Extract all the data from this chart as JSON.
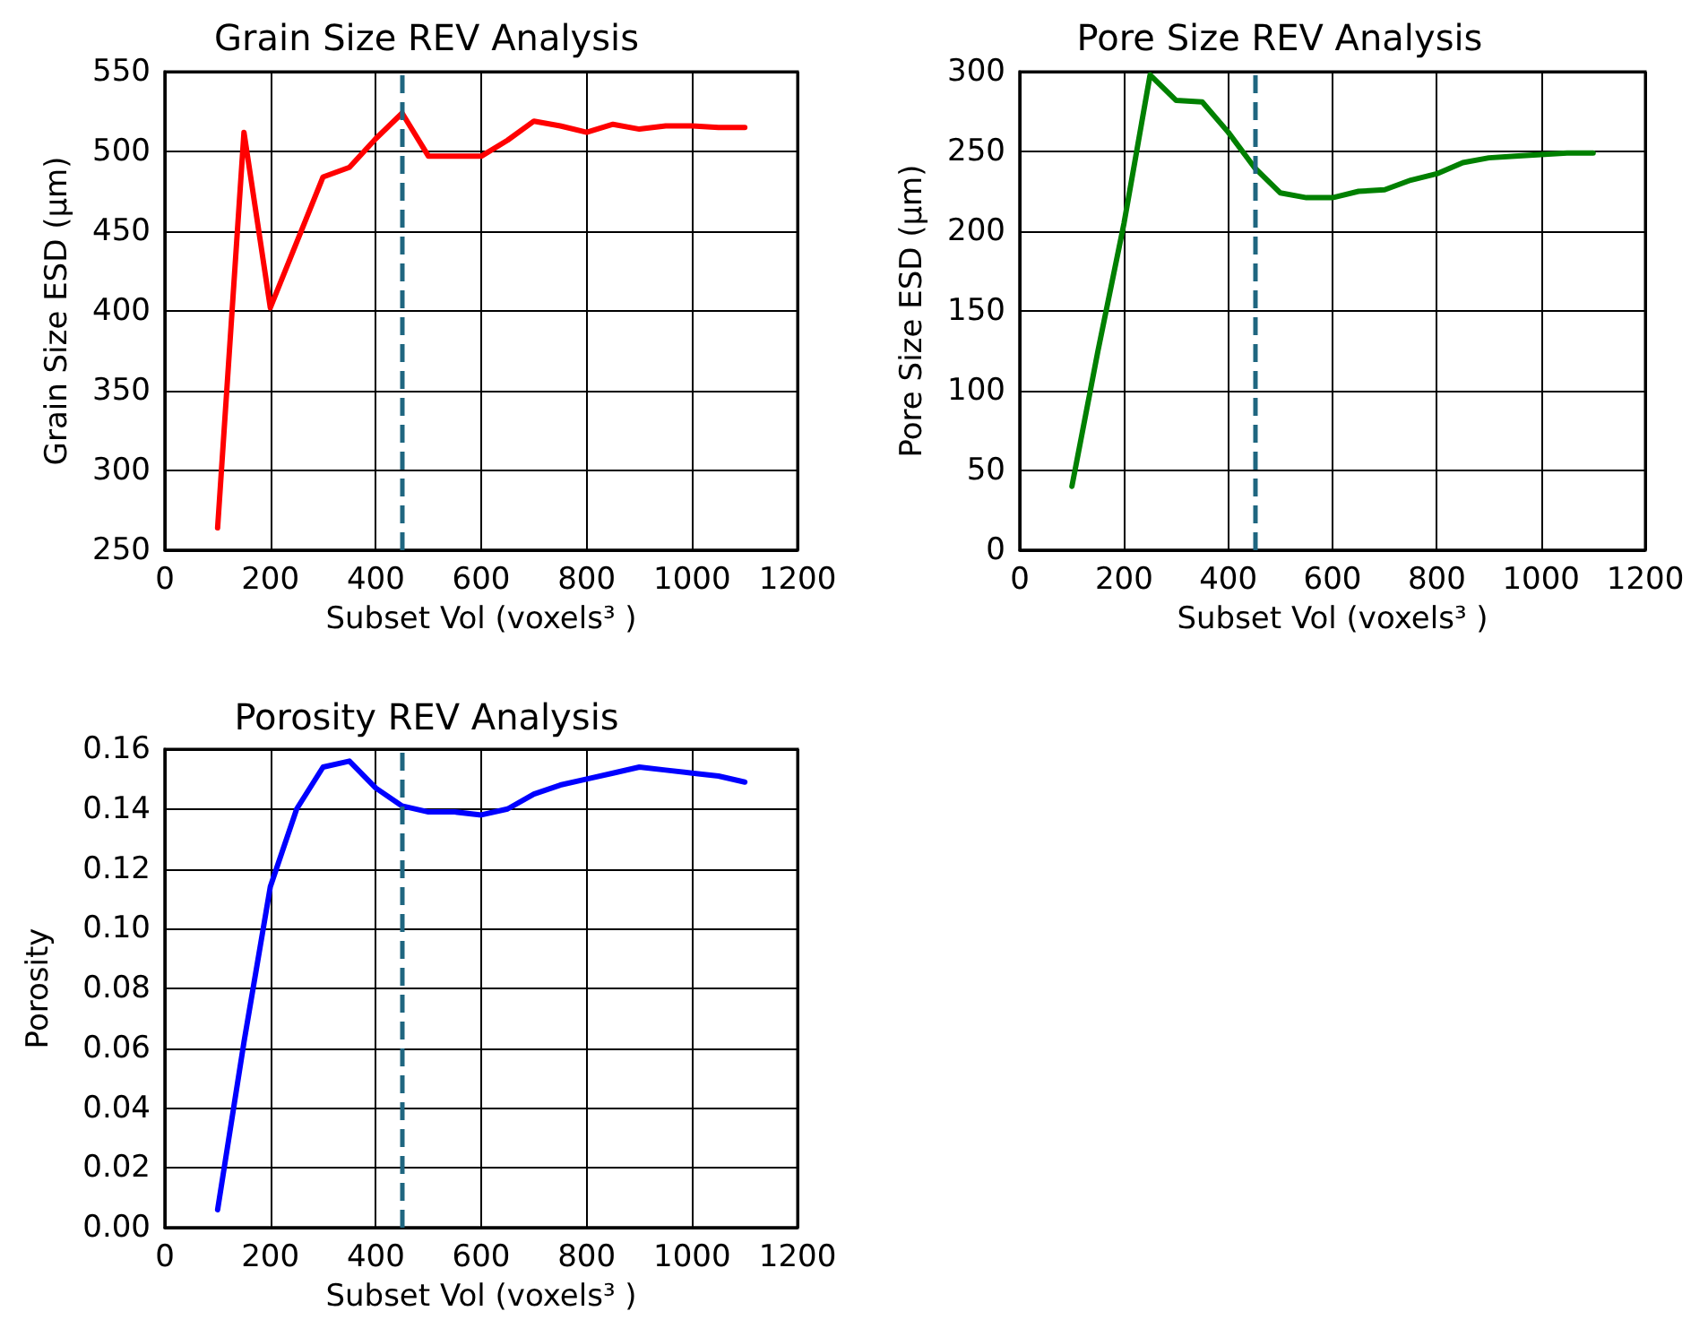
{
  "chart_data": [
    {
      "type": "line",
      "title": "Grain Size REV Analysis",
      "xlabel": "Subset Vol (voxels³ )",
      "ylabel": "Grain Size ESD (μm)",
      "x": [
        100,
        150,
        200,
        250,
        300,
        350,
        400,
        450,
        500,
        550,
        600,
        650,
        700,
        750,
        800,
        850,
        900,
        950,
        1000,
        1050,
        1100
      ],
      "series": [
        {
          "color": "#ff0000",
          "values": [
            264,
            512,
            402,
            443,
            484,
            490,
            508,
            524,
            497,
            497,
            497,
            507,
            519,
            516,
            512,
            517,
            514,
            516,
            516,
            515,
            515
          ]
        }
      ],
      "xlim": [
        0,
        1200
      ],
      "xticks": [
        0,
        200,
        400,
        600,
        800,
        1000,
        1200
      ],
      "ylim": [
        250,
        550
      ],
      "yticks": [
        250,
        300,
        350,
        400,
        450,
        500,
        550
      ],
      "ref_lines": [
        {
          "axis": "x",
          "value": 450,
          "color": "#1f6680",
          "line_style": "dashed"
        }
      ],
      "grid": true,
      "marker": "none",
      "line_style": "solid"
    },
    {
      "type": "line",
      "title": "Pore Size REV Analysis",
      "xlabel": "Subset Vol (voxels³ )",
      "ylabel": "Pore Size ESD (μm)",
      "x": [
        100,
        150,
        200,
        250,
        300,
        350,
        400,
        450,
        500,
        550,
        600,
        650,
        700,
        750,
        800,
        850,
        900,
        950,
        1000,
        1050,
        1100
      ],
      "series": [
        {
          "color": "#008000",
          "values": [
            40,
            125,
            205,
            298,
            282,
            281,
            262,
            240,
            224,
            221,
            221,
            225,
            226,
            232,
            236,
            243,
            246,
            247,
            248,
            249,
            249
          ]
        }
      ],
      "xlim": [
        0,
        1200
      ],
      "xticks": [
        0,
        200,
        400,
        600,
        800,
        1000,
        1200
      ],
      "ylim": [
        0,
        300
      ],
      "yticks": [
        0,
        50,
        100,
        150,
        200,
        250,
        300
      ],
      "ref_lines": [
        {
          "axis": "x",
          "value": 450,
          "color": "#1f6680",
          "line_style": "dashed"
        }
      ],
      "grid": true,
      "marker": "none",
      "line_style": "solid"
    },
    {
      "type": "line",
      "title": "Porosity REV Analysis",
      "xlabel": "Subset Vol (voxels³ )",
      "ylabel": "Porosity",
      "x": [
        100,
        150,
        200,
        250,
        300,
        350,
        400,
        450,
        500,
        550,
        600,
        650,
        700,
        750,
        800,
        850,
        900,
        950,
        1000,
        1050,
        1100
      ],
      "series": [
        {
          "color": "#0000ff",
          "values": [
            0.006,
            0.062,
            0.114,
            0.14,
            0.154,
            0.156,
            0.147,
            0.141,
            0.139,
            0.139,
            0.138,
            0.14,
            0.145,
            0.148,
            0.15,
            0.152,
            0.154,
            0.153,
            0.152,
            0.151,
            0.149
          ]
        }
      ],
      "xlim": [
        0,
        1200
      ],
      "xticks": [
        0,
        200,
        400,
        600,
        800,
        1000,
        1200
      ],
      "ylim": [
        0,
        0.16
      ],
      "yticks": [
        {
          "value": 0,
          "label": "0.00"
        },
        {
          "value": 0.02,
          "label": "0.02"
        },
        {
          "value": 0.04,
          "label": "0.04"
        },
        {
          "value": 0.06,
          "label": "0.06"
        },
        {
          "value": 0.08,
          "label": "0.08"
        },
        {
          "value": 0.1,
          "label": "0.10"
        },
        {
          "value": 0.12,
          "label": "0.12"
        },
        {
          "value": 0.14,
          "label": "0.14"
        },
        {
          "value": 0.16,
          "label": "0.16"
        }
      ],
      "ref_lines": [
        {
          "axis": "x",
          "value": 450,
          "color": "#1f6680",
          "line_style": "dashed"
        }
      ],
      "grid": true,
      "marker": "none",
      "line_style": "solid"
    }
  ]
}
